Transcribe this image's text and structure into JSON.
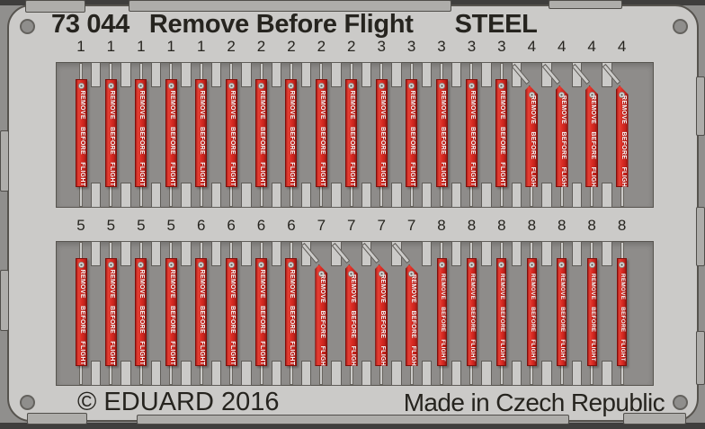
{
  "product": {
    "code": "73 044",
    "name": "Remove Before Flight",
    "material": "STEEL"
  },
  "footer": {
    "copyright": "© EDUARD 2016",
    "made_in": "Made in Czech Republic"
  },
  "ribbon": {
    "text": "REMOVE BEFORE FLIGHT"
  },
  "rows": [
    {
      "name": "top",
      "labels": [
        "1",
        "1",
        "1",
        "1",
        "1",
        "2",
        "2",
        "2",
        "2",
        "2",
        "3",
        "3",
        "3",
        "3",
        "3",
        "4",
        "4",
        "4",
        "4"
      ]
    },
    {
      "name": "bottom",
      "labels": [
        "5",
        "5",
        "5",
        "5",
        "6",
        "6",
        "6",
        "6",
        "7",
        "7",
        "7",
        "7",
        "8",
        "8",
        "8",
        "8",
        "8",
        "8",
        "8"
      ]
    }
  ],
  "colors": {
    "ribbon_red": "#d92a22",
    "plate_gray": "#cbcac8",
    "recess_gray": "#8e8c8a",
    "ink": "#26241f",
    "border_band": "#3f3e3d"
  }
}
